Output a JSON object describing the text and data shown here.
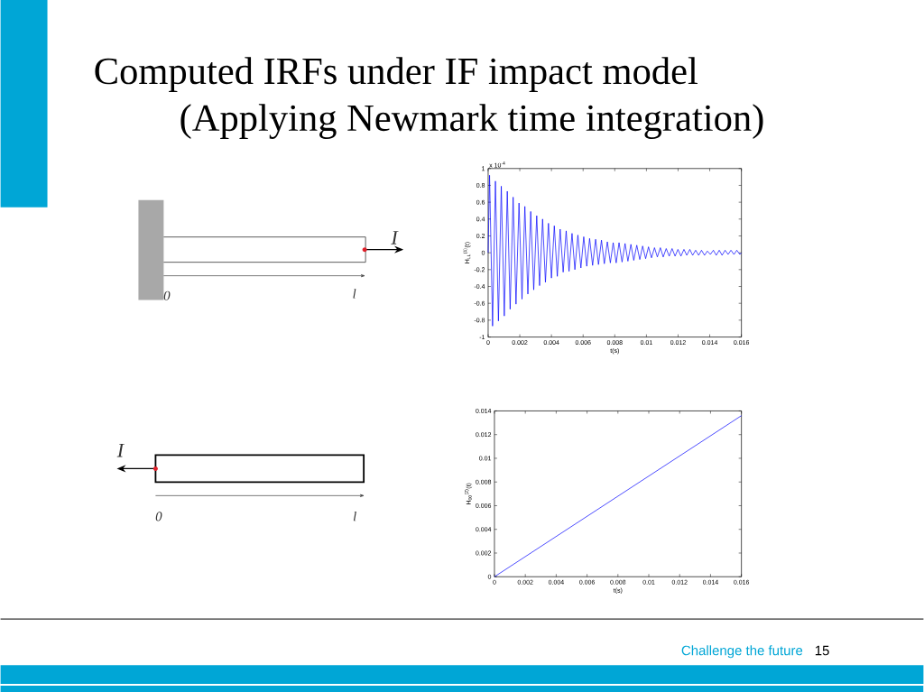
{
  "chart_data": [
    {
      "type": "other",
      "title": "Computed IRFs under IF impact model",
      "subtitle": "(Applying Newmark time integration)",
      "annotations": [
        "I",
        "0",
        "l",
        "I",
        "0",
        "l",
        "Challenge the future",
        "15"
      ]
    },
    {
      "type": "line",
      "xlabel": "t(s)",
      "ylabel": "H$_{LL}$$^{(1)}$(t)",
      "annotations": [
        "x 10$^{-4}$"
      ],
      "marker": "none",
      "x": [
        0,
        9e-05,
        0.00028,
        0.00046,
        0.00065,
        0.00083,
        0.00102,
        0.00121,
        0.00139,
        0.00158,
        0.00176,
        0.00195,
        0.00214,
        0.00232,
        0.00251,
        0.00269,
        0.00288,
        0.00307,
        0.00325,
        0.00344,
        0.00362,
        0.00381,
        0.004,
        0.00418,
        0.00437,
        0.00455,
        0.00474,
        0.00493,
        0.00511,
        0.0053,
        0.00548,
        0.00567,
        0.00586,
        0.00604,
        0.00623,
        0.00641,
        0.0066,
        0.00679,
        0.00697,
        0.00716,
        0.00734,
        0.00753,
        0.00772,
        0.0079,
        0.00809,
        0.00827,
        0.00846,
        0.00865,
        0.00883,
        0.00902,
        0.0092,
        0.00939,
        0.00958,
        0.00976,
        0.00995,
        0.01013,
        0.01032,
        0.01051,
        0.01069,
        0.01088,
        0.01106,
        0.01125,
        0.01144,
        0.01162,
        0.01181,
        0.01199,
        0.01218,
        0.01237,
        0.01255,
        0.01274,
        0.01292,
        0.01311,
        0.0133,
        0.01348,
        0.01367,
        0.01385,
        0.01404,
        0.01423,
        0.01441,
        0.0146,
        0.01478,
        0.01497,
        0.01516,
        0.01534,
        0.01553,
        0.01571,
        0.0159,
        0.016
      ],
      "series": [
        {
          "color": "#0000ff",
          "values": [
            0,
            0.92,
            -0.87,
            0.85,
            -0.81,
            0.79,
            -0.75,
            0.73,
            -0.67,
            0.66,
            -0.61,
            0.59,
            -0.55,
            0.55,
            -0.49,
            0.49,
            -0.44,
            0.44,
            -0.39,
            0.4,
            -0.35,
            0.35,
            -0.3,
            0.32,
            -0.28,
            0.28,
            -0.23,
            0.26,
            -0.22,
            0.23,
            -0.2,
            0.21,
            -0.18,
            0.19,
            -0.16,
            0.17,
            -0.15,
            0.16,
            -0.14,
            0.15,
            -0.13,
            0.13,
            -0.12,
            0.12,
            -0.12,
            0.12,
            -0.11,
            0.11,
            -0.1,
            0.1,
            -0.09,
            0.09,
            -0.08,
            0.08,
            -0.07,
            0.07,
            -0.06,
            0.06,
            -0.05,
            0.06,
            -0.05,
            0.05,
            -0.04,
            0.05,
            -0.04,
            0.04,
            -0.04,
            0.04,
            -0.03,
            0.04,
            -0.03,
            0.03,
            -0.03,
            0.03,
            -0.03,
            0.02,
            -0.02,
            0.03,
            -0.03,
            0.03,
            -0.03,
            0.03,
            -0.02,
            0.03,
            -0.02,
            0.03,
            -0.02,
            0
          ]
        }
      ],
      "xlim": [
        0,
        0.016
      ],
      "ylim": [
        -1,
        1
      ],
      "xticks": [
        0,
        0.002,
        0.004,
        0.006,
        0.008,
        0.01,
        0.012,
        0.014,
        0.016
      ],
      "yticks": [
        -1,
        -0.8,
        -0.6,
        -0.4,
        -0.2,
        0,
        0.2,
        0.4,
        0.6,
        0.8,
        1
      ]
    },
    {
      "type": "line",
      "xlabel": "t(s)",
      "ylabel": "H$_{00}$$^{(2)}$(t)",
      "marker": "none",
      "x": [
        0,
        0.016
      ],
      "series": [
        {
          "color": "#0000ff",
          "values": [
            0,
            0.0136
          ]
        }
      ],
      "xlim": [
        0,
        0.016
      ],
      "ylim": [
        0,
        0.014
      ],
      "xticks": [
        0,
        0.002,
        0.004,
        0.006,
        0.008,
        0.01,
        0.012,
        0.014,
        0.016
      ],
      "yticks": [
        0,
        0.002,
        0.004,
        0.006,
        0.008,
        0.01,
        0.012,
        0.014
      ]
    }
  ]
}
